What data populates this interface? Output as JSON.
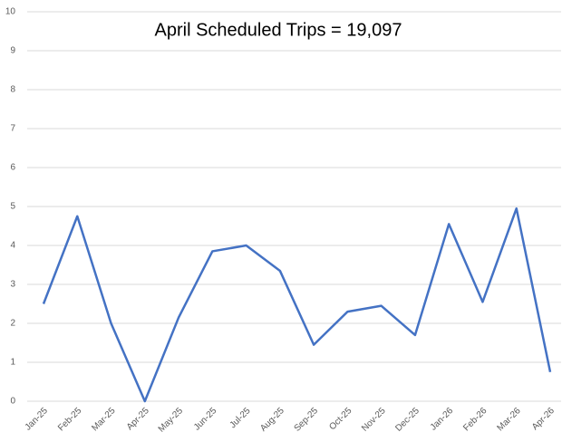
{
  "chart_data": {
    "type": "line",
    "title": "April Scheduled Trips = 19,097",
    "categories": [
      "Jan-25",
      "Feb-25",
      "Mar-25",
      "Apr-25",
      "May-25",
      "Jun-25",
      "Jul-25",
      "Aug-25",
      "Sep-25",
      "Oct-25",
      "Nov-25",
      "Dec-25",
      "Jan-26",
      "Feb-26",
      "Mar-26",
      "Apr-26"
    ],
    "series": [
      {
        "name": "Scheduled Trips",
        "color": "#4472c4",
        "values": [
          2.5,
          4.75,
          2.0,
          0,
          2.15,
          3.85,
          4.0,
          3.35,
          1.45,
          2.3,
          2.45,
          1.7,
          4.55,
          2.55,
          4.95,
          0.75
        ]
      }
    ],
    "ylim": [
      0,
      10
    ],
    "yticks": [
      0,
      1,
      2,
      3,
      4,
      5,
      6,
      7,
      8,
      9,
      10
    ],
    "grid": true
  }
}
